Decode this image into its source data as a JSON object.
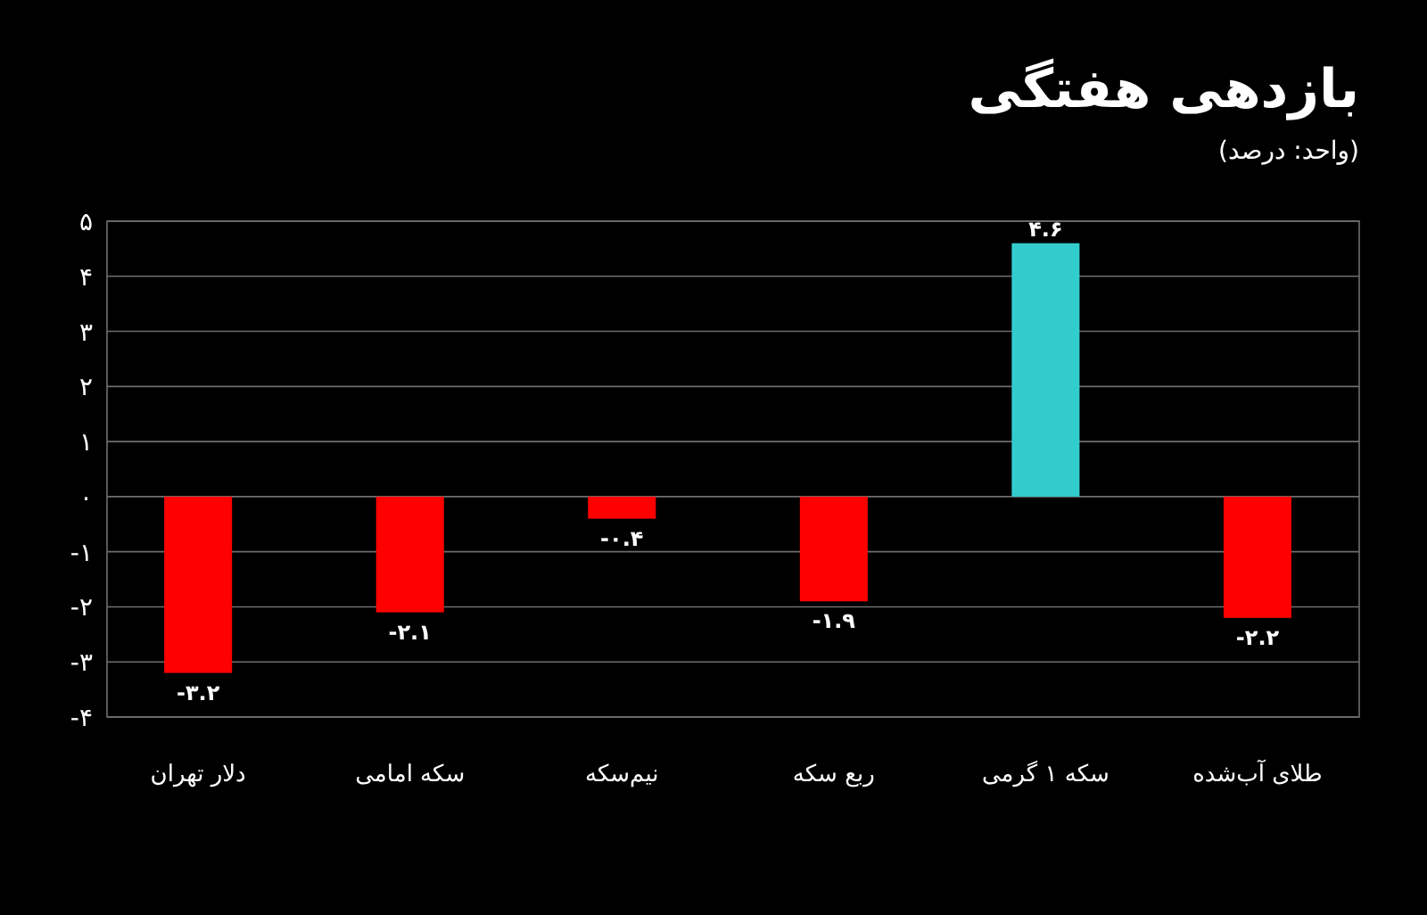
{
  "chart_data": {
    "type": "bar",
    "title": "بازدهی هفتگی",
    "subtitle": "(واحد: درصد)",
    "categories": [
      "دلار تهران",
      "سکه امامی",
      "نیم‌سکه",
      "ربع سکه",
      "سکه ۱ گرمی",
      "طلای آب‌شده"
    ],
    "values": [
      -3.2,
      -2.1,
      -0.4,
      -1.9,
      4.6,
      -2.2
    ],
    "colors": [
      "#ff0000",
      "#ff0000",
      "#ff0000",
      "#ff0000",
      "#33cccc",
      "#ff0000"
    ],
    "value_labels": [
      "-۳.۲",
      "-۲.۱",
      "-۰.۴",
      "-۱.۹",
      "۴.۶",
      "-۲.۲"
    ],
    "ylim": [
      -4,
      5
    ],
    "yticks": [
      {
        "value": -4,
        "label": "-۴"
      },
      {
        "value": -3,
        "label": "-۳"
      },
      {
        "value": -2,
        "label": "-۲"
      },
      {
        "value": -1,
        "label": "-۱"
      },
      {
        "value": 0,
        "label": "۰"
      },
      {
        "value": 1,
        "label": "۱"
      },
      {
        "value": 2,
        "label": "۲"
      },
      {
        "value": 3,
        "label": "۳"
      },
      {
        "value": 4,
        "label": "۴"
      },
      {
        "value": 5,
        "label": "۵"
      }
    ],
    "grid": "y"
  }
}
